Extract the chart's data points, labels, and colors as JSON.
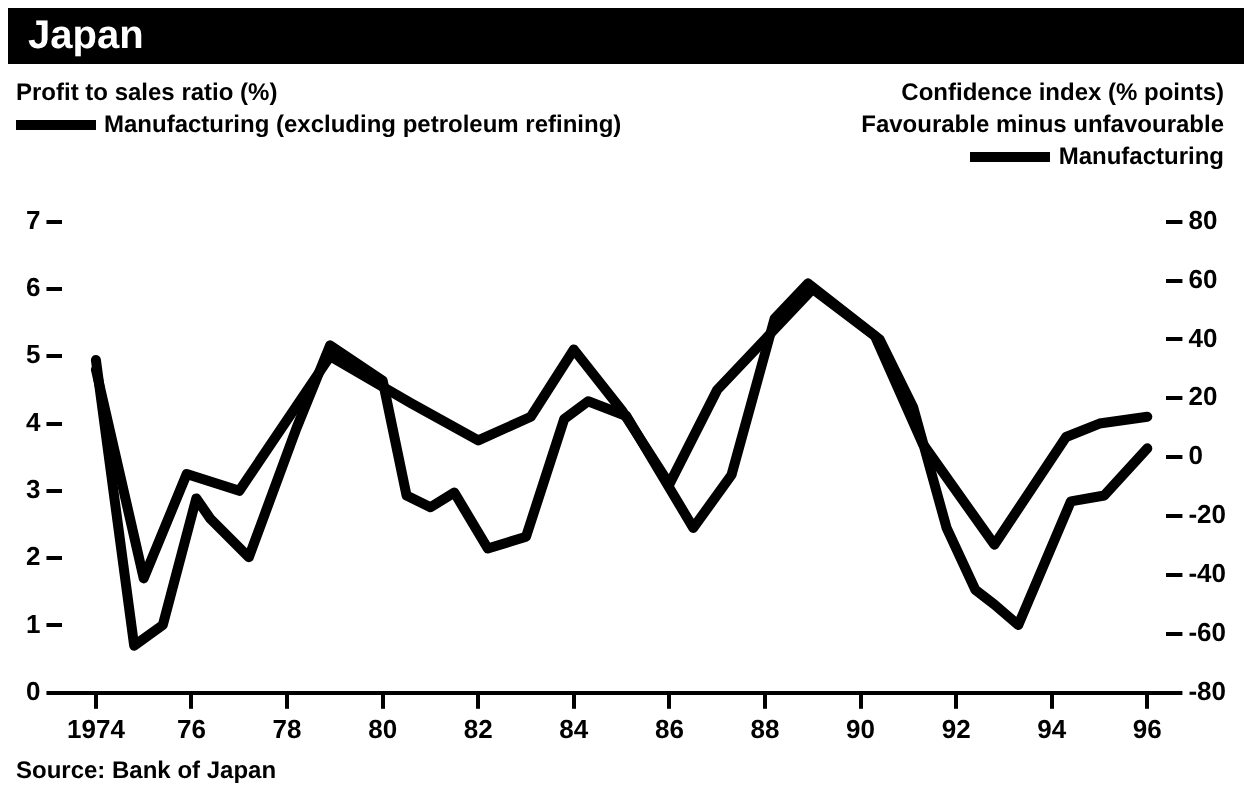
{
  "chart_data": {
    "type": "line",
    "title": "Japan",
    "ylabel": "Profit to sales ratio (%)",
    "y2label": "Confidence index (% points)",
    "annotations": [
      "Favourable minus unfavourable",
      "Source: Bank of Japan"
    ],
    "legend": "top",
    "marker": "none",
    "line_style": "solid",
    "xlim": [
      1973.3,
      1996.4
    ],
    "xticks": [
      {
        "value": 1974,
        "label": "1974"
      },
      {
        "value": 1976,
        "label": "76"
      },
      {
        "value": 1978,
        "label": "78"
      },
      {
        "value": 1980,
        "label": "80"
      },
      {
        "value": 1982,
        "label": "82"
      },
      {
        "value": 1984,
        "label": "84"
      },
      {
        "value": 1986,
        "label": "86"
      },
      {
        "value": 1988,
        "label": "88"
      },
      {
        "value": 1990,
        "label": "90"
      },
      {
        "value": 1992,
        "label": "92"
      },
      {
        "value": 1994,
        "label": "94"
      },
      {
        "value": 1996,
        "label": "96"
      }
    ],
    "ylim": [
      0,
      7
    ],
    "yticks": [
      0,
      1,
      2,
      3,
      4,
      5,
      6,
      7
    ],
    "y2lim": [
      -80,
      80
    ],
    "y2ticks": [
      -80,
      -60,
      -40,
      -20,
      0,
      20,
      40,
      60,
      80
    ],
    "series": [
      {
        "name": "Manufacturing (excluding petroleum refining)",
        "color": "#000000",
        "x": [
          1974,
          1975,
          1975.9,
          1977,
          1978.9,
          1980.6,
          1982,
          1983.1,
          1984,
          1985,
          1986,
          1987,
          1989,
          1990.3,
          1991.3,
          1992.8,
          1994.3,
          1995,
          1996
        ],
        "values": [
          4.8,
          1.7,
          3.25,
          3.0,
          5.0,
          4.3,
          3.75,
          4.1,
          5.1,
          4.2,
          3.1,
          4.5,
          6.0,
          5.3,
          3.7,
          2.2,
          3.8,
          4.0,
          4.1
        ]
      },
      {
        "name": "Manufacturing",
        "color": "#000000",
        "axis": "y2",
        "x": [
          1974,
          1974.8,
          1975.4,
          1976.1,
          1976.4,
          1977.2,
          1978.2,
          1978.9,
          1980,
          1980.5,
          1981,
          1981.5,
          1982.2,
          1983,
          1983.8,
          1984.3,
          1985.1,
          1986.5,
          1987.3,
          1988.2,
          1988.9,
          1990.4,
          1991.1,
          1991.8,
          1992.4,
          1992.8,
          1993.3,
          1994.4,
          1995.1,
          1996
        ],
        "values": [
          33,
          -64,
          -57,
          -14,
          -21,
          -34,
          10,
          38,
          26,
          -13,
          -17,
          -12,
          -31,
          -27,
          13,
          19,
          14,
          -24,
          -6,
          47,
          59,
          40,
          17,
          -24,
          -45,
          -50,
          -57,
          -15,
          -13,
          3
        ]
      }
    ]
  }
}
